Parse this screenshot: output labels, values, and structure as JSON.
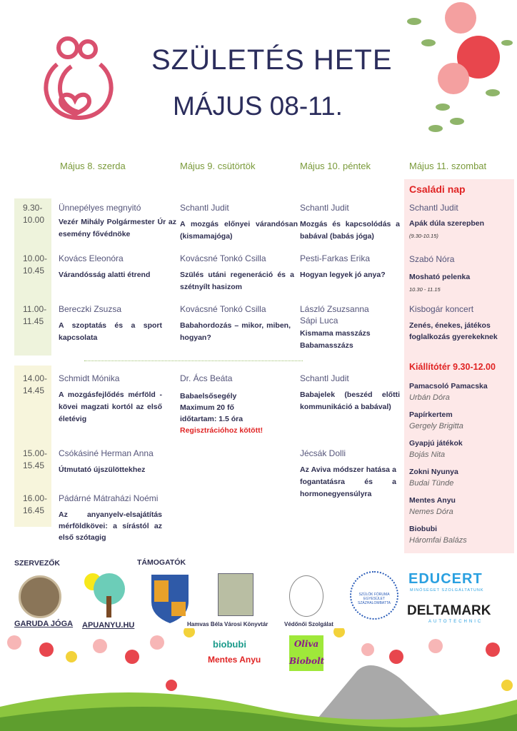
{
  "header": {
    "title": "SZÜLETÉS HETE",
    "dates": "MÁJUS 08-11."
  },
  "days": [
    "Május 8. szerda",
    "Május 9. csütörtök",
    "Május 10. péntek",
    "Május 11. szombat"
  ],
  "times": [
    "9.30-",
    "10.00",
    "10.00-",
    "10.45",
    "11.00-",
    "11.45",
    "14.00-",
    "14.45",
    "15.00-",
    "15.45",
    "16.00-",
    "16.45"
  ],
  "day1": [
    {
      "name": "Ünnepélyes megnyitó",
      "title": "Vezér Mihály Polgármester Úr az esemény fővédnöke"
    },
    {
      "name": "Kovács Eleonóra",
      "title": "Várandósság alatti étrend"
    },
    {
      "name": "Bereczki Zsuzsa",
      "title": "A szoptatás és a sport kapcsolata"
    },
    {
      "name": "Schmidt Mónika",
      "title": "A mozgásfejlődés mérföld -kövei magzati kortól az első életévig"
    },
    {
      "name": "Csókásiné Herman Anna",
      "title": "Útmutató újszülöttekhez"
    },
    {
      "name": "Pádárné Mátraházi Noémi",
      "title": "Az anyanyelv-elsajátítás mérföldkövei: a sírástól az első szótagig"
    }
  ],
  "day2": [
    {
      "name": "Schantl Judit",
      "title": "A mozgás előnyei várandósan (kismamajóga)"
    },
    {
      "name": "Kovácsné Tonkó Csilla",
      "title": "Szülés utáni regeneráció és a szétnyílt hasizom"
    },
    {
      "name": "Kovácsné Tonkó Csilla",
      "title": "Babahordozás – mikor, miben, hogyan?"
    },
    {
      "name": "Dr. Ács Beáta",
      "title": "Babaelsősegély",
      "line2": "Maximum 20 fő",
      "line3": "időtartam: 1.5 óra",
      "note": "Regisztrációhoz kötött!"
    }
  ],
  "day3": [
    {
      "name": "Schantl Judit",
      "title": "Mozgás és kapcsolódás a babával (babás jóga)"
    },
    {
      "name": "Pesti-Farkas Erika",
      "title": "Hogyan legyek jó anya?"
    },
    {
      "name": "László Zsuzsanna",
      "name2": "Sápi Luca",
      "title": "Kismama masszázs",
      "title2": "Babamasszázs"
    },
    {
      "name": "Schantl Judit",
      "title": "Babajelek (beszéd előtti kommunikáció a babával)"
    },
    {
      "name": "Jécsák Dolli",
      "title": "Az Aviva módszer hatása a fogantatásra és a hormonegyensúlyra"
    }
  ],
  "day4": {
    "heading": "Családi nap",
    "items": [
      {
        "name": "Schantl Judit",
        "title": "Apák dúla szerepben",
        "time": "(9.30-10.15)"
      },
      {
        "name": "Szabó Nóra",
        "title": "Mosható pelenka",
        "time": "10.30 - 11.15"
      },
      {
        "name": "Kisbogár koncert",
        "title": "Zenés, énekes, játékos foglalkozás gyerekeknek"
      }
    ],
    "exhibition_heading": "Kiállítótér 9.30-12.00",
    "exhibitors": [
      {
        "title": "Pamacsoló Pamacska",
        "name": "Urbán Dóra"
      },
      {
        "title": "Papírkertem",
        "name": "Gergely Brigitta"
      },
      {
        "title": "Gyapjú játékok",
        "name": "Bojás Nita"
      },
      {
        "title": "Zokni Nyunya",
        "name": "Budai Tünde"
      },
      {
        "title": "Mentes Anyu",
        "name": "Nemes Dóra"
      },
      {
        "title": "Biobubi",
        "name": "Háromfai Balázs"
      }
    ]
  },
  "footer": {
    "organizers_label": "SZERVEZŐK",
    "sponsors_label": "TÁMOGATÓK",
    "organizers": [
      "GARUDA JÓGA",
      "APUANYU.HU"
    ],
    "sponsors": [
      "Hamvas Béla Városi Könyvtár",
      "Védőnői Szolgálat",
      "SZÜLŐK FÓRUMA EGYESÜLET SZÁZHALOMBATTA",
      "EDUCERT",
      "MINŐSÉGET SZOLGÁLTATUNK",
      "DELTAMARK",
      "AUTOTECHNIC",
      "biobubi",
      "Mentes Anyu",
      "Oliva",
      "Biobolt"
    ]
  },
  "colors": {
    "title": "#2b2d5c",
    "day_header": "#7a9a3a",
    "accent_red": "#e02424",
    "pink_bg": "#fde8e8"
  }
}
